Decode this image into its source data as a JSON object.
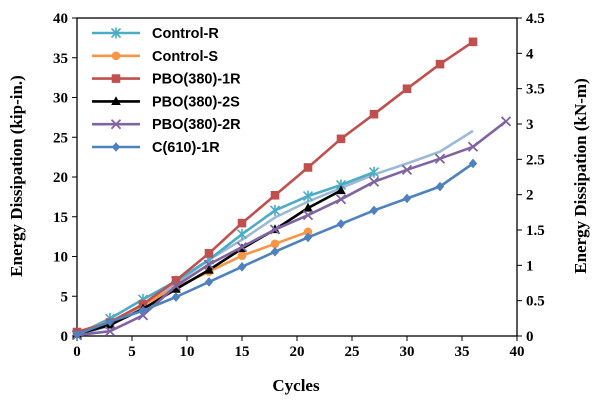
{
  "chart_data": {
    "type": "line",
    "xlabel": "Cycles",
    "ylabel": "Energy Dissipation (kip-in.)",
    "y2label": "Energy Dissipation (kN-m)",
    "xlim": [
      0,
      40
    ],
    "ylim": [
      0,
      40
    ],
    "y2lim": [
      0,
      4.5
    ],
    "x_ticks": [
      "0",
      "5",
      "10",
      "15",
      "20",
      "25",
      "30",
      "35",
      "40"
    ],
    "y_ticks": [
      "0",
      "5",
      "10",
      "15",
      "20",
      "25",
      "30",
      "35",
      "40"
    ],
    "y2_ticks": [
      "0",
      "0.5",
      "1",
      "1.5",
      "2",
      "2.5",
      "3",
      "3.5",
      "4",
      "4.5"
    ],
    "grid": false,
    "legend_position": "top-left",
    "series": [
      {
        "name": "Control-R",
        "color": "#4BACC6",
        "marker": "asterisk",
        "points": [
          [
            0,
            0.2
          ],
          [
            3,
            2.2
          ],
          [
            6,
            4.6
          ],
          [
            9,
            6.9
          ],
          [
            12,
            9.6
          ],
          [
            15,
            12.8
          ],
          [
            18,
            15.8
          ],
          [
            21,
            17.6
          ],
          [
            24,
            19.0
          ],
          [
            27,
            20.6
          ]
        ]
      },
      {
        "name": "Control-S",
        "color": "#F79646",
        "marker": "circle",
        "points": [
          [
            0,
            0.5
          ],
          [
            3,
            1.8
          ],
          [
            6,
            3.9
          ],
          [
            9,
            6.1
          ],
          [
            12,
            8.1
          ],
          [
            15,
            10.1
          ],
          [
            18,
            11.6
          ],
          [
            21,
            13.1
          ]
        ]
      },
      {
        "name": "PBO(380)-1R",
        "color": "#C0504D",
        "marker": "square",
        "points": [
          [
            0,
            0.5
          ],
          [
            3,
            1.7
          ],
          [
            6,
            4.0
          ],
          [
            9,
            7.0
          ],
          [
            12,
            10.4
          ],
          [
            15,
            14.2
          ],
          [
            18,
            17.7
          ],
          [
            21,
            21.2
          ],
          [
            24,
            24.8
          ],
          [
            27,
            27.9
          ],
          [
            30,
            31.1
          ],
          [
            33,
            34.2
          ],
          [
            36,
            37.0
          ]
        ]
      },
      {
        "name": "PBO(380)-2S",
        "color": "#000000",
        "marker": "triangle",
        "points": [
          [
            0,
            0.2
          ],
          [
            3,
            1.4
          ],
          [
            6,
            3.4
          ],
          [
            9,
            5.9
          ],
          [
            12,
            8.3
          ],
          [
            15,
            11.0
          ],
          [
            18,
            13.4
          ],
          [
            21,
            16.1
          ],
          [
            24,
            18.3
          ]
        ]
      },
      {
        "name": "PBO(380)-2R",
        "color": "#8064A2",
        "marker": "x",
        "points": [
          [
            0,
            0.1
          ],
          [
            3,
            0.6
          ],
          [
            6,
            2.6
          ],
          [
            9,
            6.3
          ],
          [
            12,
            9.0
          ],
          [
            15,
            11.2
          ],
          [
            18,
            13.4
          ],
          [
            21,
            15.2
          ],
          [
            24,
            17.2
          ],
          [
            27,
            19.4
          ],
          [
            30,
            20.9
          ],
          [
            33,
            22.3
          ],
          [
            36,
            23.8
          ],
          [
            39,
            27.0
          ]
        ]
      },
      {
        "name": "C(610)-1R",
        "color": "#4F81BD",
        "marker": "diamond",
        "points": [
          [
            0,
            0.2
          ],
          [
            3,
            1.8
          ],
          [
            6,
            3.2
          ],
          [
            9,
            4.9
          ],
          [
            12,
            6.8
          ],
          [
            15,
            8.7
          ],
          [
            18,
            10.6
          ],
          [
            21,
            12.4
          ],
          [
            24,
            14.1
          ],
          [
            27,
            15.8
          ],
          [
            30,
            17.3
          ],
          [
            33,
            18.8
          ],
          [
            36,
            21.7
          ]
        ]
      },
      {
        "name": "",
        "color": "#9DB9D6",
        "marker": "none",
        "points": [
          [
            0,
            0.1
          ],
          [
            3,
            1.3
          ],
          [
            6,
            3.8
          ],
          [
            9,
            6.6
          ],
          [
            12,
            9.6
          ],
          [
            15,
            12.1
          ],
          [
            18,
            14.9
          ],
          [
            21,
            16.9
          ],
          [
            24,
            18.6
          ],
          [
            27,
            20.3
          ],
          [
            30,
            21.7
          ],
          [
            33,
            23.2
          ],
          [
            36,
            25.8
          ]
        ]
      }
    ]
  }
}
